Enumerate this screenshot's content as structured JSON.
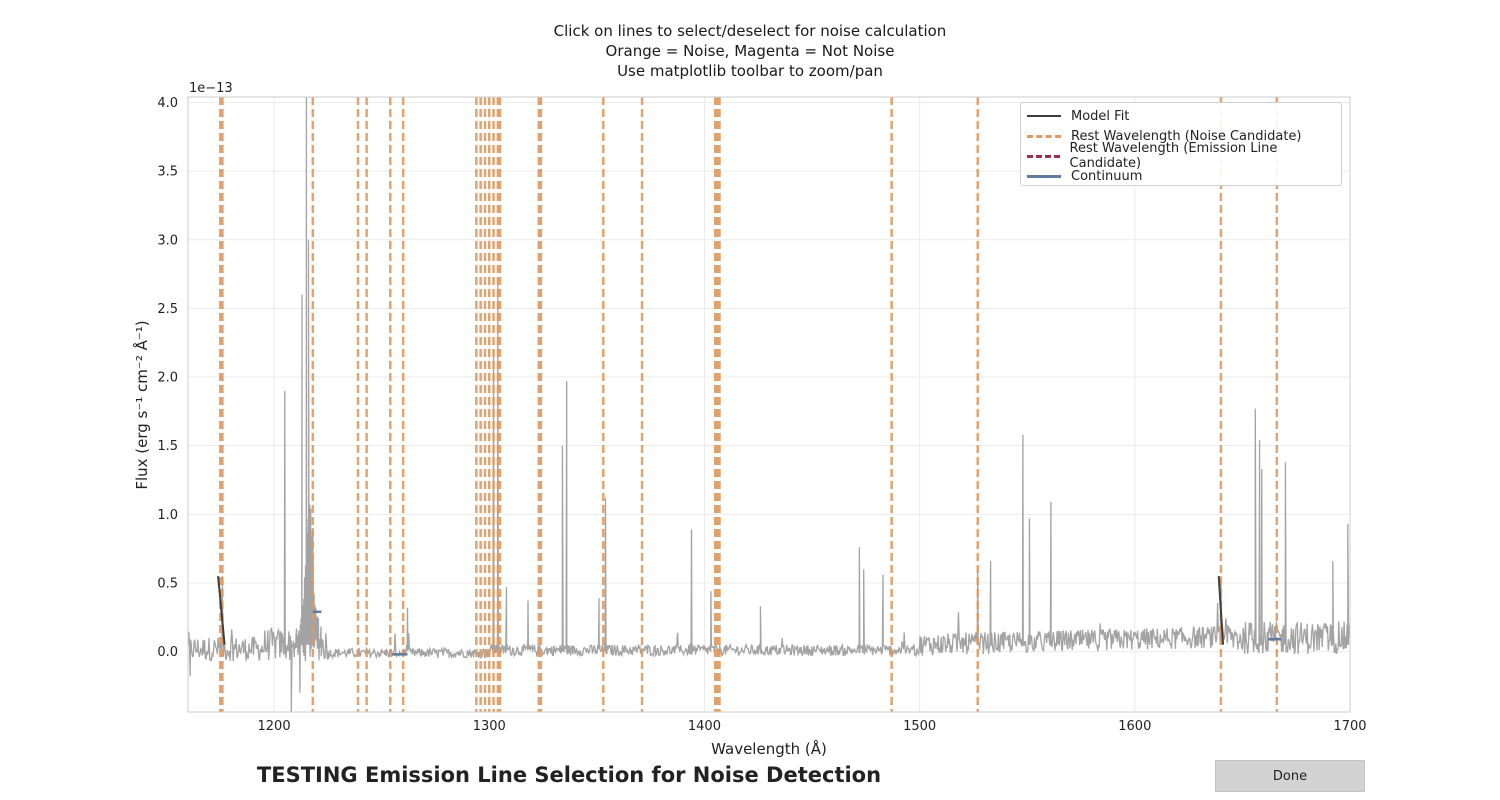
{
  "window": {
    "title_lines": [
      "Click on lines to select/deselect for noise calculation",
      "Orange = Noise, Magenta = Not Noise",
      "Use matplotlib toolbar to zoom/pan"
    ],
    "bottom_title": "TESTING Emission Line Selection for Noise Detection",
    "done_label": "Done"
  },
  "colors": {
    "noise_line": "#dd9a62",
    "emission_line": "#9c2f4f",
    "spectrum": "#a3a3a3",
    "model_fit": "#3d3d3d",
    "continuum": "#617a9e",
    "grid": "#ebebeb"
  },
  "chart_data": {
    "type": "line",
    "title": "",
    "xlabel": "Wavelength (Å)",
    "ylabel": "Flux (erg s⁻¹ cm⁻² Å⁻¹)",
    "offset_text": "1e−13",
    "xlim": [
      1160,
      1700
    ],
    "ylim": [
      -0.44,
      4.04
    ],
    "x_scale": "linear",
    "y_units_multiplier": 1e-13,
    "grid": true,
    "legend_position": "top-right",
    "xticks": [
      1200,
      1300,
      1400,
      1500,
      1600,
      1700
    ],
    "xtick_labels": [
      "1200",
      "1300",
      "1400",
      "1500",
      "1600",
      "1700"
    ],
    "yticks": [
      0.0,
      0.5,
      1.0,
      1.5,
      2.0,
      2.5,
      3.0,
      3.5,
      4.0
    ],
    "ytick_labels": [
      "0.0",
      "0.5",
      "1.0",
      "1.5",
      "2.0",
      "2.5",
      "3.0",
      "3.5",
      "4.0"
    ],
    "legend": [
      {
        "label": "Model Fit",
        "style": "solid-dark"
      },
      {
        "label": "Rest Wavelength (Noise Candidate)",
        "style": "dash-orange"
      },
      {
        "label": "Rest Wavelength (Emission Line Candidate)",
        "style": "dash-maroon"
      },
      {
        "label": "Continuum",
        "style": "solid-blue"
      }
    ],
    "noise_candidate_lines": [
      1175,
      1176,
      1218,
      1239,
      1243,
      1254,
      1260,
      1294,
      1296,
      1298,
      1300,
      1302,
      1304,
      1305,
      1323,
      1324,
      1353,
      1371,
      1405,
      1406,
      1407,
      1487,
      1527,
      1640,
      1666
    ],
    "emission_line_candidates": [],
    "spectrum_peaks": [
      {
        "x": 1176,
        "y": 0.55
      },
      {
        "x": 1205,
        "y": 1.9
      },
      {
        "x": 1213,
        "y": 2.6
      },
      {
        "x": 1215,
        "y": 4.04
      },
      {
        "x": 1216,
        "y": 3.0
      },
      {
        "x": 1218,
        "y": 0.9
      },
      {
        "x": 1262,
        "y": 0.32
      },
      {
        "x": 1302,
        "y": 2.2
      },
      {
        "x": 1304,
        "y": 2.7
      },
      {
        "x": 1308,
        "y": 0.47
      },
      {
        "x": 1318,
        "y": 0.37
      },
      {
        "x": 1334,
        "y": 1.5
      },
      {
        "x": 1336,
        "y": 1.97
      },
      {
        "x": 1351,
        "y": 0.39
      },
      {
        "x": 1354,
        "y": 1.12
      },
      {
        "x": 1394,
        "y": 0.89
      },
      {
        "x": 1403,
        "y": 0.44
      },
      {
        "x": 1426,
        "y": 0.33
      },
      {
        "x": 1472,
        "y": 0.76
      },
      {
        "x": 1474,
        "y": 0.6
      },
      {
        "x": 1483,
        "y": 0.56
      },
      {
        "x": 1527,
        "y": 0.58
      },
      {
        "x": 1533,
        "y": 0.66
      },
      {
        "x": 1548,
        "y": 1.58
      },
      {
        "x": 1551,
        "y": 0.97
      },
      {
        "x": 1561,
        "y": 1.09
      },
      {
        "x": 1640,
        "y": 0.55
      },
      {
        "x": 1656,
        "y": 1.77
      },
      {
        "x": 1658,
        "y": 1.54
      },
      {
        "x": 1659,
        "y": 1.33
      },
      {
        "x": 1670,
        "y": 1.38
      },
      {
        "x": 1692,
        "y": 0.66
      },
      {
        "x": 1699,
        "y": 0.93
      }
    ],
    "spectrum_dips": [
      {
        "x": 1161,
        "y": -0.18
      },
      {
        "x": 1208,
        "y": -0.44
      },
      {
        "x": 1212,
        "y": -0.3
      }
    ],
    "model_fit_segments": [
      {
        "x": [
          1174,
          1177
        ],
        "y": 0.55
      },
      {
        "x": [
          1639,
          1641
        ],
        "y": 0.55
      }
    ],
    "continuum_segments": [
      {
        "x": [
          1218,
          1222
        ],
        "y": 0.29
      },
      {
        "x": [
          1255,
          1262
        ],
        "y": -0.02
      },
      {
        "x": [
          1662,
          1668
        ],
        "y": 0.09
      }
    ]
  }
}
